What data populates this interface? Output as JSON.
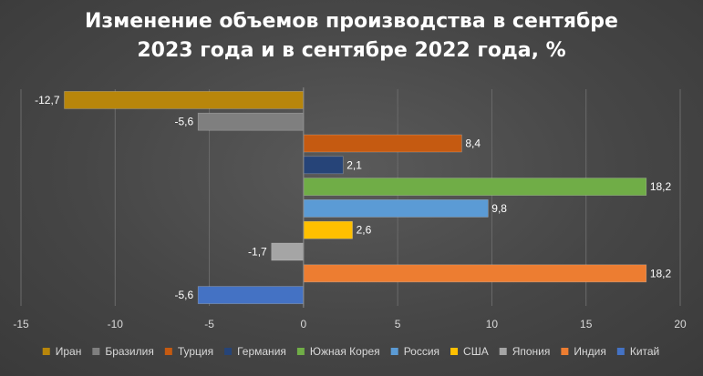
{
  "chart_data": {
    "type": "bar",
    "orientation": "horizontal",
    "title_line1": "Изменение объемов производства в сентябре",
    "title_line2": "2023 года и в сентябре 2022 года, %",
    "categories": [
      "Иран",
      "Бразилия",
      "Турция",
      "Германия",
      "Южная Корея",
      "Россия",
      "США",
      "Япония",
      "Индия",
      "Китай"
    ],
    "values": [
      -12.7,
      -5.6,
      8.4,
      2.1,
      18.2,
      9.8,
      2.6,
      -1.7,
      18.2,
      -5.6
    ],
    "value_labels": [
      "-12,7",
      "-5,6",
      "8,4",
      "2,1",
      "18,2",
      "9,8",
      "2,6",
      "-1,7",
      "18,2",
      "-5,6"
    ],
    "colors": [
      "#b8860b",
      "#7f7f7f",
      "#c55a11",
      "#264478",
      "#70ad47",
      "#5b9bd5",
      "#ffc000",
      "#a5a5a5",
      "#ed7d31",
      "#4472c4"
    ],
    "xlim": [
      -15,
      20
    ],
    "xticks": [
      -15,
      -10,
      -5,
      0,
      5,
      10,
      15,
      20
    ],
    "grid": true,
    "legend_position": "bottom"
  }
}
